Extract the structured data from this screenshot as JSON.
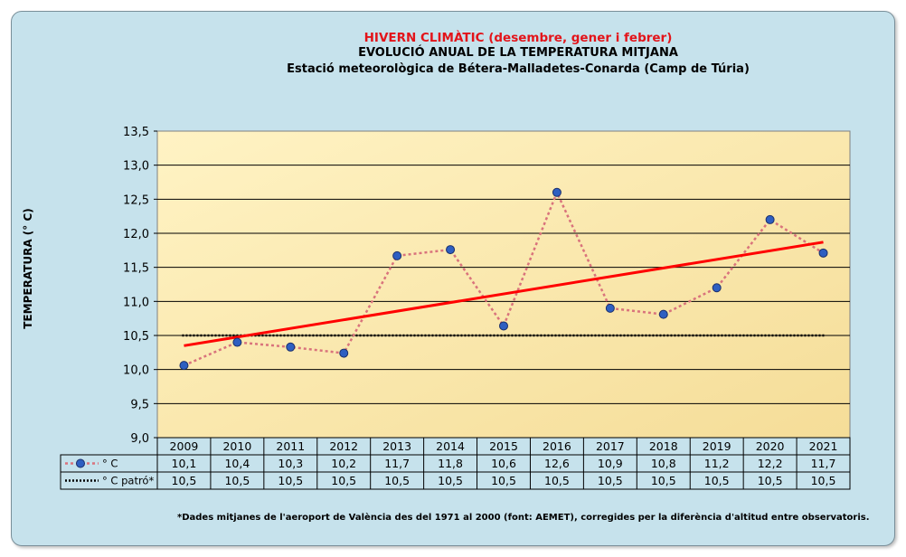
{
  "titles": {
    "line1": "HIVERN CLIMÀTIC (desembre, gener i febrer)",
    "line2": "EVOLUCIÓ ANUAL DE LA TEMPERATURA MITJANA",
    "line3": "Estació meteorològica de Bétera-Malladetes-Conarda (Camp de Túria)"
  },
  "footnote": "*Dades mitjanes de l'aeroport de València des del 1971 al 2000 (font: AEMET), corregides per la diferència d'altitud entre observatoris.",
  "chart_data": {
    "type": "line",
    "ylabel": "TEMPERATURA (° C)",
    "ylim": [
      9.0,
      13.5
    ],
    "yticks": [
      "9,0",
      "9,5",
      "10,0",
      "10,5",
      "11,0",
      "11,5",
      "12,0",
      "12,5",
      "13,0",
      "13,5"
    ],
    "grid": true,
    "categories": [
      "2009",
      "2010",
      "2011",
      "2012",
      "2013",
      "2014",
      "2015",
      "2016",
      "2017",
      "2018",
      "2019",
      "2020",
      "2021"
    ],
    "series": [
      {
        "name": "° C",
        "values": [
          10.06,
          10.4,
          10.33,
          10.24,
          11.67,
          11.76,
          10.64,
          12.6,
          10.9,
          10.81,
          11.2,
          12.2,
          11.71
        ],
        "labels": [
          "10,1",
          "10,4",
          "10,3",
          "10,2",
          "11,7",
          "11,8",
          "10,6",
          "12,6",
          "10,9",
          "10,8",
          "11,2",
          "12,2",
          "11,7"
        ],
        "color": "#d9737c",
        "marker_color": "#2e5fc1"
      },
      {
        "name": "° C patró*",
        "values": [
          10.5,
          10.5,
          10.5,
          10.5,
          10.5,
          10.5,
          10.5,
          10.5,
          10.5,
          10.5,
          10.5,
          10.5,
          10.5
        ],
        "labels": [
          "10,5",
          "10,5",
          "10,5",
          "10,5",
          "10,5",
          "10,5",
          "10,5",
          "10,5",
          "10,5",
          "10,5",
          "10,5",
          "10,5",
          "10,5"
        ],
        "color": "#000000"
      }
    ],
    "trendline": {
      "start": 10.35,
      "end": 11.87,
      "color": "#ff0000"
    },
    "plot_background": [
      "#fff3c4",
      "#f5dd98"
    ]
  }
}
